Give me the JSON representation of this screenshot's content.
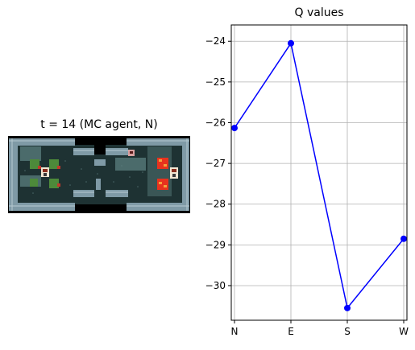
{
  "env_panel": {
    "title": "t = 14 (MC agent, N)"
  },
  "chart_data": {
    "type": "line",
    "title": "Q values",
    "xlabel": "",
    "ylabel": "",
    "categories": [
      "N",
      "E",
      "S",
      "W"
    ],
    "values": [
      -26.13,
      -24.05,
      -30.55,
      -28.85
    ],
    "ylim": [
      -30.85,
      -23.6
    ],
    "yticks": [
      -24,
      -25,
      -26,
      -27,
      -28,
      -29,
      -30
    ],
    "ytick_labels": [
      "−24",
      "−25",
      "−26",
      "−27",
      "−28",
      "−29",
      "−30"
    ],
    "grid": true,
    "line_color": "#0000ff",
    "marker": "circle"
  }
}
